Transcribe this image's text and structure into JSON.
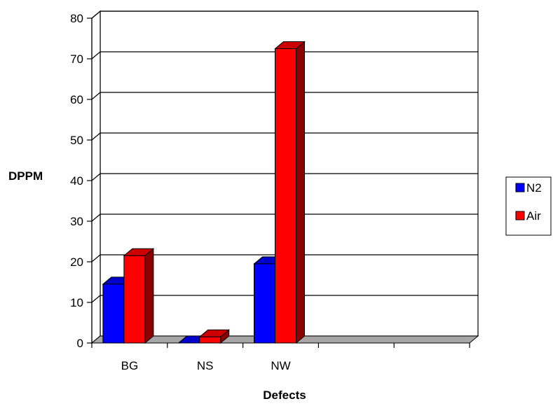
{
  "chart_data": {
    "type": "bar",
    "style": "3d-clustered",
    "categories": [
      "BG",
      "NS",
      "NW",
      "",
      ""
    ],
    "series": [
      {
        "name": "N2",
        "color": "#0000ff",
        "values": [
          14.5,
          0,
          19.5,
          null,
          null
        ]
      },
      {
        "name": "Air",
        "color": "#ff0000",
        "values": [
          21.5,
          1.5,
          72.5,
          null,
          null
        ]
      }
    ],
    "title": "",
    "xlabel": "Defects",
    "ylabel": "DPPM",
    "ylim": [
      0,
      80
    ],
    "yticks": [
      0,
      10,
      20,
      30,
      40,
      50,
      60,
      70,
      80
    ],
    "grid": true,
    "legend_position": "right"
  }
}
